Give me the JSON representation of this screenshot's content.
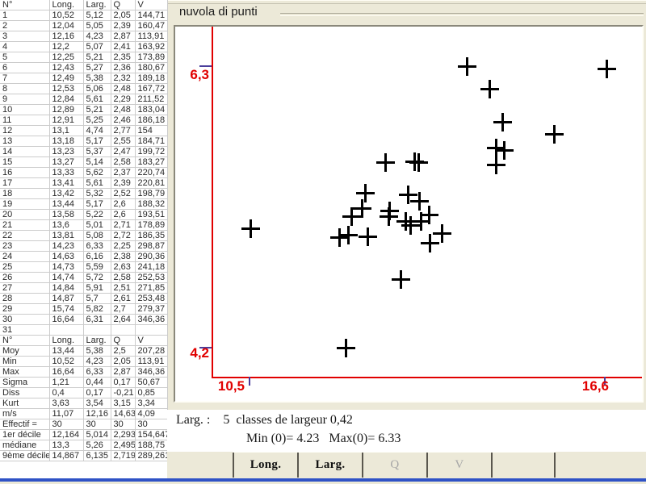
{
  "table": {
    "columns": [
      "N°",
      "Long.",
      "Larg.",
      "Q",
      "V"
    ],
    "rows": [
      [
        "1",
        "10,52",
        "5,12",
        "2,05",
        "144,71"
      ],
      [
        "2",
        "12,04",
        "5,05",
        "2,39",
        "160,47"
      ],
      [
        "3",
        "12,16",
        "4,23",
        "2,87",
        "113,91"
      ],
      [
        "4",
        "12,2",
        "5,07",
        "2,41",
        "163,92"
      ],
      [
        "5",
        "12,25",
        "5,21",
        "2,35",
        "173,89"
      ],
      [
        "6",
        "12,43",
        "5,27",
        "2,36",
        "180,67"
      ],
      [
        "7",
        "12,49",
        "5,38",
        "2,32",
        "189,18"
      ],
      [
        "8",
        "12,53",
        "5,06",
        "2,48",
        "167,72"
      ],
      [
        "9",
        "12,84",
        "5,61",
        "2,29",
        "211,52"
      ],
      [
        "10",
        "12,89",
        "5,21",
        "2,48",
        "183,04"
      ],
      [
        "11",
        "12,91",
        "5,25",
        "2,46",
        "186,18"
      ],
      [
        "12",
        "13,1",
        "4,74",
        "2,77",
        "154"
      ],
      [
        "13",
        "13,18",
        "5,17",
        "2,55",
        "184,71"
      ],
      [
        "14",
        "13,23",
        "5,37",
        "2,47",
        "199,72"
      ],
      [
        "15",
        "13,27",
        "5,14",
        "2,58",
        "183,27"
      ],
      [
        "16",
        "13,33",
        "5,62",
        "2,37",
        "220,74"
      ],
      [
        "17",
        "13,41",
        "5,61",
        "2,39",
        "220,81"
      ],
      [
        "18",
        "13,42",
        "5,32",
        "2,52",
        "198,79"
      ],
      [
        "19",
        "13,44",
        "5,17",
        "2,6",
        "188,32"
      ],
      [
        "20",
        "13,58",
        "5,22",
        "2,6",
        "193,51"
      ],
      [
        "21",
        "13,6",
        "5,01",
        "2,71",
        "178,89"
      ],
      [
        "22",
        "13,81",
        "5,08",
        "2,72",
        "186,35"
      ],
      [
        "23",
        "14,23",
        "6,33",
        "2,25",
        "298,87"
      ],
      [
        "24",
        "14,63",
        "6,16",
        "2,38",
        "290,36"
      ],
      [
        "25",
        "14,73",
        "5,59",
        "2,63",
        "241,18"
      ],
      [
        "26",
        "14,74",
        "5,72",
        "2,58",
        "252,53"
      ],
      [
        "27",
        "14,84",
        "5,91",
        "2,51",
        "271,85"
      ],
      [
        "28",
        "14,87",
        "5,7",
        "2,61",
        "253,48"
      ],
      [
        "29",
        "15,74",
        "5,82",
        "2,7",
        "279,37"
      ],
      [
        "30",
        "16,64",
        "6,31",
        "2,64",
        "346,36"
      ],
      [
        "31",
        "",
        "",
        "",
        ""
      ]
    ],
    "stats": [
      [
        "Moy",
        "13,44",
        "5,38",
        "2,5",
        "207,28"
      ],
      [
        "Min",
        "10,52",
        "4,23",
        "2,05",
        "113,91"
      ],
      [
        "Max",
        "16,64",
        "6,33",
        "2,87",
        "346,36"
      ],
      [
        "Sigma",
        "1,21",
        "0,44",
        "0,17",
        "50,67"
      ],
      [
        "Diss",
        "0,4",
        "0,17",
        "-0,21",
        "0,85"
      ],
      [
        "Kurt",
        "3,63",
        "3,54",
        "3,15",
        "3,34"
      ],
      [
        "m/s",
        "11,07",
        "12,16",
        "14,63",
        "4,09"
      ],
      [
        "Effectif =",
        "30",
        "30",
        "30",
        "30"
      ],
      [
        "1er décile",
        "12,164",
        "5,014",
        "2,293",
        "154,647"
      ],
      [
        "médiane",
        "13,3",
        "5,26",
        "2,495",
        "188,75"
      ],
      [
        "9ème décile",
        "14,867",
        "6,135",
        "2,719",
        "289,261"
      ]
    ]
  },
  "chart_data": {
    "type": "scatter",
    "title": "nuvola di punti",
    "xlabel": "Long.",
    "ylabel": "Larg.",
    "xlim": [
      10.5,
      16.6
    ],
    "ylim": [
      4.2,
      6.3
    ],
    "tick_labels": {
      "x": [
        "10,5",
        "16,6"
      ],
      "y": [
        "4,2",
        "6,3"
      ]
    },
    "marker": "+",
    "marker_color": "#000000",
    "axis_color": "#e10000",
    "tick_color": "#4b3e9b",
    "grid": false,
    "legend": false,
    "points": [
      [
        10.52,
        5.12
      ],
      [
        12.04,
        5.05
      ],
      [
        12.16,
        4.23
      ],
      [
        12.2,
        5.07
      ],
      [
        12.25,
        5.21
      ],
      [
        12.43,
        5.27
      ],
      [
        12.49,
        5.38
      ],
      [
        12.53,
        5.06
      ],
      [
        12.84,
        5.61
      ],
      [
        12.89,
        5.21
      ],
      [
        12.91,
        5.25
      ],
      [
        13.1,
        4.74
      ],
      [
        13.18,
        5.17
      ],
      [
        13.23,
        5.37
      ],
      [
        13.27,
        5.14
      ],
      [
        13.33,
        5.62
      ],
      [
        13.41,
        5.61
      ],
      [
        13.42,
        5.32
      ],
      [
        13.44,
        5.17
      ],
      [
        13.58,
        5.22
      ],
      [
        13.6,
        5.01
      ],
      [
        13.81,
        5.08
      ],
      [
        14.23,
        6.33
      ],
      [
        14.63,
        6.16
      ],
      [
        14.73,
        5.59
      ],
      [
        14.74,
        5.72
      ],
      [
        14.84,
        5.91
      ],
      [
        14.87,
        5.7
      ],
      [
        15.74,
        5.82
      ],
      [
        16.64,
        6.31
      ]
    ]
  },
  "footer": {
    "line1": "Larg. :    5  classes de largeur 0,42",
    "line2": "Min (0)= 4.23   Max(0)= 6.33"
  },
  "buttons": [
    {
      "label": "Long.",
      "enabled": true
    },
    {
      "label": "Larg.",
      "enabled": true
    },
    {
      "label": "Q",
      "enabled": false
    },
    {
      "label": "V",
      "enabled": false
    },
    {
      "label": "",
      "enabled": false
    }
  ]
}
